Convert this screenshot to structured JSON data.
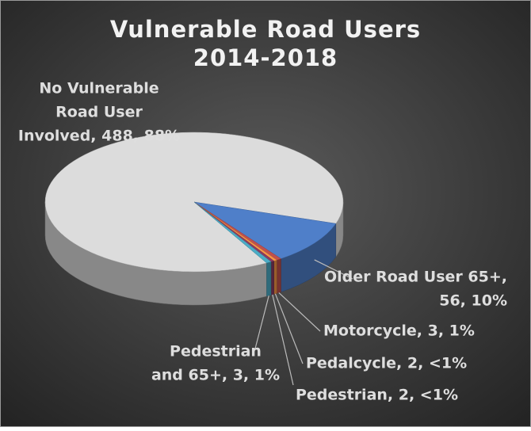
{
  "chart_data": {
    "type": "pie",
    "title": [
      "Vulnerable Road Users",
      "2014-2018"
    ],
    "labels": [
      [
        "No Vulnerable",
        "Road User",
        "Involved, 488, 88%"
      ],
      [
        "Older Road User 65+,",
        "56, 10%"
      ],
      [
        "Motorcycle, 3, 1%"
      ],
      [
        "Pedalcycle, 2, <1%"
      ],
      [
        "Pedestrian, 2, <1%"
      ],
      [
        "Pedestrian",
        "and 65+, 3, 1%"
      ]
    ],
    "values": [
      488,
      56,
      3,
      2,
      2,
      3
    ],
    "colors": [
      "#dcdcdc",
      "#4f7fc9",
      "#c0504d",
      "#f79646",
      "#8b3a62",
      "#4bacc6"
    ]
  }
}
